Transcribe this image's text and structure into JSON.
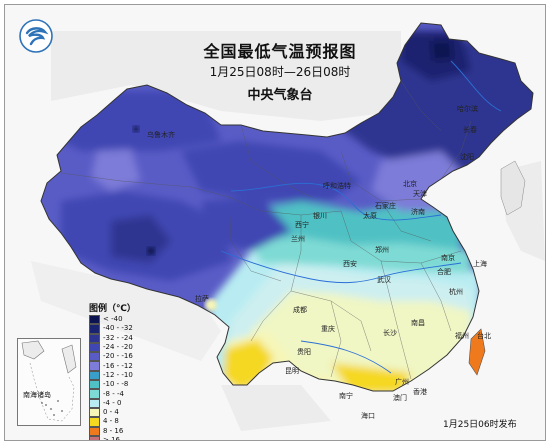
{
  "title": "全国最低气温预报图",
  "period": "1月25日08时—26日08时",
  "agency": "中央气象台",
  "issue_time": "1月25日06时发布",
  "legend": {
    "title": "图例（℃）",
    "items": [
      {
        "label": "< -40",
        "color": "#0b1450"
      },
      {
        "label": "-40 - -32",
        "color": "#1a2370"
      },
      {
        "label": "-32 - -24",
        "color": "#2e3590"
      },
      {
        "label": "-24 - -20",
        "color": "#4046b2"
      },
      {
        "label": "-20 - -16",
        "color": "#5a5cc6"
      },
      {
        "label": "-16 - -12",
        "color": "#7d7cd8"
      },
      {
        "label": "-12 - -10",
        "color": "#3a9fc8"
      },
      {
        "label": "-10 - -8",
        "color": "#4fc1c4"
      },
      {
        "label": "-8 - -4",
        "color": "#7edad4"
      },
      {
        "label": "-4 - 0",
        "color": "#b8ecf2"
      },
      {
        "label": "0 - 4",
        "color": "#f6f6b8"
      },
      {
        "label": "4 - 8",
        "color": "#f5d820"
      },
      {
        "label": "8 - 16",
        "color": "#ef7a1e"
      },
      {
        "label": "> 16",
        "color": "#c7707a"
      }
    ]
  },
  "inset_label": "南海诸岛",
  "cities": [
    {
      "name": "哈尔滨"
    },
    {
      "name": "乌鲁木齐"
    },
    {
      "name": "长春"
    },
    {
      "name": "沈阳"
    },
    {
      "name": "呼和浩特"
    },
    {
      "name": "北京"
    },
    {
      "name": "天津"
    },
    {
      "name": "银川"
    },
    {
      "name": "太原"
    },
    {
      "name": "石家庄"
    },
    {
      "name": "济南"
    },
    {
      "name": "西宁"
    },
    {
      "name": "兰州"
    },
    {
      "name": "郑州"
    },
    {
      "name": "西安"
    },
    {
      "name": "拉萨"
    },
    {
      "name": "成都"
    },
    {
      "name": "合肥"
    },
    {
      "name": "南京"
    },
    {
      "name": "上海"
    },
    {
      "name": "武汉"
    },
    {
      "name": "杭州"
    },
    {
      "name": "重庆"
    },
    {
      "name": "长沙"
    },
    {
      "name": "南昌"
    },
    {
      "name": "贵阳"
    },
    {
      "name": "福州"
    },
    {
      "name": "昆明"
    },
    {
      "name": "南宁"
    },
    {
      "name": "广州"
    },
    {
      "name": "海口"
    },
    {
      "name": "台北"
    },
    {
      "name": "香港"
    },
    {
      "name": "澳门"
    }
  ]
}
